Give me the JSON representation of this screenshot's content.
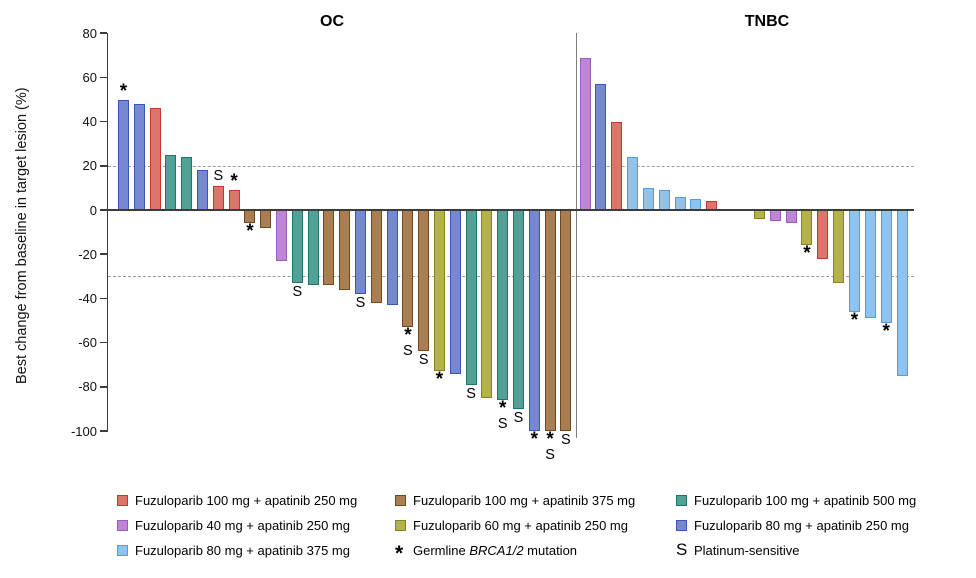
{
  "figure": {
    "legend": {
      "columns": [
        {
          "items": [
            {
              "type": "swatch",
              "group": "f100a250"
            },
            {
              "type": "swatch",
              "group": "f40a250"
            },
            {
              "type": "swatch",
              "group": "f80a375"
            }
          ]
        },
        {
          "items": [
            {
              "type": "swatch",
              "group": "f100a375"
            },
            {
              "type": "swatch",
              "group": "f60a250"
            },
            {
              "type": "marker",
              "symbol": "*",
              "prefix": "Germline ",
              "italic": "BRCA1/2",
              "suffix": " mutation"
            }
          ]
        },
        {
          "items": [
            {
              "type": "swatch",
              "group": "f100a500"
            },
            {
              "type": "swatch",
              "group": "f80a250"
            },
            {
              "type": "marker",
              "symbol": "S",
              "label": "Platinum-sensitive"
            }
          ]
        }
      ]
    }
  },
  "chart_data": {
    "type": "bar",
    "ylabel": "Best change from baseline in target lesion (%)",
    "ylim": [
      -100,
      80
    ],
    "yticks": [
      80,
      60,
      40,
      20,
      0,
      -20,
      -40,
      -60,
      -80,
      -100
    ],
    "reference_lines": [
      20,
      -30
    ],
    "grid": false,
    "markers": {
      "star": {
        "symbol": "*",
        "meaning": "Germline BRCA1/2 mutation"
      },
      "s": {
        "symbol": "S",
        "meaning": "Platinum-sensitive"
      }
    },
    "groups": {
      "f100a250": {
        "label": "Fuzuloparib 100 mg + apatinib 250 mg",
        "fill": "#DC766C",
        "border": "#C03A30"
      },
      "f40a250": {
        "label": "Fuzuloparib 40 mg + apatinib 250 mg",
        "fill": "#BF86D5",
        "border": "#9C59BE"
      },
      "f80a375": {
        "label": "Fuzuloparib 80 mg + apatinib 375 mg",
        "fill": "#90C2EC",
        "border": "#549DDC"
      },
      "f100a375": {
        "label": "Fuzuloparib 100 mg + apatinib 375 mg",
        "fill": "#A87E52",
        "border": "#70491F"
      },
      "f60a250": {
        "label": "Fuzuloparib 60 mg + apatinib 250 mg",
        "fill": "#B5B14B",
        "border": "#85831C"
      },
      "f100a500": {
        "label": "Fuzuloparib 100 mg + apatinib 500 mg",
        "fill": "#53A097",
        "border": "#20756A"
      },
      "f80a250": {
        "label": "Fuzuloparib 80 mg + apatinib 250 mg",
        "fill": "#7689CE",
        "border": "#3C55B8"
      }
    },
    "panels": [
      {
        "title": "OC",
        "bars": [
          {
            "value": 50,
            "group": "f80a250",
            "marks": [
              "*"
            ]
          },
          {
            "value": 48,
            "group": "f80a250",
            "marks": []
          },
          {
            "value": 46,
            "group": "f100a250",
            "marks": []
          },
          {
            "value": 25,
            "group": "f100a500",
            "marks": []
          },
          {
            "value": 24,
            "group": "f100a500",
            "marks": []
          },
          {
            "value": 18,
            "group": "f80a250",
            "marks": []
          },
          {
            "value": 11,
            "group": "f100a250",
            "marks": [
              "S"
            ]
          },
          {
            "value": 9,
            "group": "f100a250",
            "marks": [
              "*"
            ]
          },
          {
            "value": -6,
            "group": "f100a375",
            "marks": [
              "*"
            ]
          },
          {
            "value": -8,
            "group": "f100a375",
            "marks": []
          },
          {
            "value": -23,
            "group": "f40a250",
            "marks": []
          },
          {
            "value": -33,
            "group": "f100a500",
            "marks": [
              "S"
            ]
          },
          {
            "value": -34,
            "group": "f100a500",
            "marks": []
          },
          {
            "value": -34,
            "group": "f100a375",
            "marks": []
          },
          {
            "value": -36,
            "group": "f100a375",
            "marks": []
          },
          {
            "value": -38,
            "group": "f80a250",
            "marks": [
              "S"
            ]
          },
          {
            "value": -42,
            "group": "f100a375",
            "marks": []
          },
          {
            "value": -43,
            "group": "f80a250",
            "marks": []
          },
          {
            "value": -53,
            "group": "f100a375",
            "marks": [
              "*",
              "S"
            ]
          },
          {
            "value": -64,
            "group": "f100a375",
            "marks": [
              "S"
            ]
          },
          {
            "value": -73,
            "group": "f60a250",
            "marks": [
              "*"
            ]
          },
          {
            "value": -74,
            "group": "f80a250",
            "marks": []
          },
          {
            "value": -79,
            "group": "f100a500",
            "marks": [
              "S"
            ]
          },
          {
            "value": -85,
            "group": "f60a250",
            "marks": []
          },
          {
            "value": -86,
            "group": "f100a500",
            "marks": [
              "*",
              "S"
            ]
          },
          {
            "value": -90,
            "group": "f100a500",
            "marks": [
              "S"
            ]
          },
          {
            "value": -100,
            "group": "f80a250",
            "marks": [
              "*"
            ]
          },
          {
            "value": -100,
            "group": "f100a375",
            "marks": [
              "*",
              "S"
            ]
          },
          {
            "value": -100,
            "group": "f100a375",
            "marks": [
              "S"
            ]
          }
        ]
      },
      {
        "title": "TNBC",
        "bars": [
          {
            "value": 69,
            "group": "f40a250",
            "marks": []
          },
          {
            "value": 57,
            "group": "f80a250",
            "marks": []
          },
          {
            "value": 40,
            "group": "f100a250",
            "marks": []
          },
          {
            "value": 24,
            "group": "f80a375",
            "marks": []
          },
          {
            "value": 10,
            "group": "f80a375",
            "marks": []
          },
          {
            "value": 9,
            "group": "f80a375",
            "marks": []
          },
          {
            "value": 6,
            "group": "f80a375",
            "marks": []
          },
          {
            "value": 5,
            "group": "f80a375",
            "marks": []
          },
          {
            "value": 4,
            "group": "f100a250",
            "marks": []
          },
          {
            "value": 0,
            "group": null,
            "marks": []
          },
          {
            "value": 0,
            "group": null,
            "marks": []
          },
          {
            "value": -4,
            "group": "f60a250",
            "marks": []
          },
          {
            "value": -5,
            "group": "f40a250",
            "marks": []
          },
          {
            "value": -6,
            "group": "f40a250",
            "marks": []
          },
          {
            "value": -16,
            "group": "f60a250",
            "marks": [
              "*"
            ]
          },
          {
            "value": -22,
            "group": "f100a250",
            "marks": []
          },
          {
            "value": -33,
            "group": "f60a250",
            "marks": []
          },
          {
            "value": -46,
            "group": "f80a375",
            "marks": [
              "*"
            ]
          },
          {
            "value": -49,
            "group": "f80a375",
            "marks": []
          },
          {
            "value": -51,
            "group": "f80a375",
            "marks": [
              "*"
            ]
          },
          {
            "value": -75,
            "group": "f80a375",
            "marks": []
          }
        ]
      }
    ]
  }
}
